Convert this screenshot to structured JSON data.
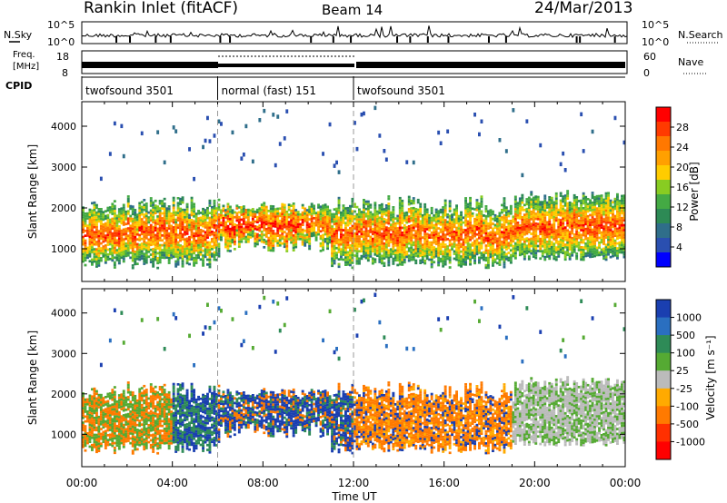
{
  "header": {
    "title": "Rankin Inlet (fitACF)",
    "beam": "Beam 14",
    "date": "24/Mar/2013"
  },
  "chart_data": [
    {
      "type": "line",
      "panel": "noise",
      "left_label": "N.Sky",
      "right_label": "N.Search",
      "left_ticks": [
        "10^5",
        "10^0"
      ],
      "right_ticks": [
        "10^5",
        "10^0"
      ],
      "scale": "log"
    },
    {
      "type": "line",
      "panel": "frequency",
      "left_label_lines": [
        "Freq.",
        "[MHz]"
      ],
      "right_label": "Nave",
      "left_ticks": [
        "18",
        "8"
      ],
      "right_ticks": [
        "60",
        "0"
      ]
    },
    {
      "type": "table",
      "panel": "cpid",
      "label": "CPID",
      "segments": [
        {
          "name": "twofsound 3501",
          "start_hour": 0,
          "end_hour": 6
        },
        {
          "name": "normal (fast) 151",
          "start_hour": 6,
          "end_hour": 12
        },
        {
          "name": "twofsound 3501",
          "start_hour": 12,
          "end_hour": 24
        }
      ]
    },
    {
      "type": "heatmap",
      "panel": "power",
      "ylabel": "Slant Range [km]",
      "y_ticks": [
        1000,
        2000,
        3000,
        4000
      ],
      "ylim": [
        200,
        4600
      ],
      "x_ticks": [
        "00:00",
        "04:00",
        "08:00",
        "12:00",
        "16:00",
        "20:00",
        "00:00"
      ],
      "xlim": [
        0,
        24
      ],
      "colorbar_label": "Power [dB]",
      "colorbar_ticks": [
        "28",
        "24",
        "20",
        "16",
        "12",
        "8",
        "4"
      ],
      "colorbar_colors": [
        "#ff0000",
        "#ff3a00",
        "#ff7800",
        "#ffa000",
        "#ffcc00",
        "#88cc22",
        "#44aa44",
        "#2d8a55",
        "#2f6e8a",
        "#2a4fb0",
        "#0000ff"
      ]
    },
    {
      "type": "heatmap",
      "panel": "velocity",
      "ylabel": "Slant Range [km]",
      "y_ticks": [
        1000,
        2000,
        3000,
        4000
      ],
      "ylim": [
        200,
        4600
      ],
      "x_ticks": [
        "00:00",
        "04:00",
        "08:00",
        "12:00",
        "16:00",
        "20:00",
        "00:00"
      ],
      "xlim": [
        0,
        24
      ],
      "xlabel": "Time UT",
      "colorbar_label": "Velocity [m s⁻¹]",
      "colorbar_ticks": [
        "1000",
        "500",
        "100",
        "25",
        "-25",
        "-100",
        "-500",
        "-1000"
      ],
      "colorbar_colors": [
        "#1a3fb0",
        "#2a6fc0",
        "#2e8b57",
        "#55aa33",
        "#bbbbbb",
        "#ffaa00",
        "#ff7a00",
        "#ff3000",
        "#ff0000"
      ]
    }
  ],
  "colors": {
    "power_strong": "#ff2000",
    "power_mid": "#ff9900",
    "power_green": "#55aa44",
    "power_weak": "#2a4fb0",
    "vel_neg": "#ff8c00",
    "vel_pos": "#1a3fb0",
    "vel_zero": "#bbbbbb",
    "vel_green": "#4caf50"
  }
}
